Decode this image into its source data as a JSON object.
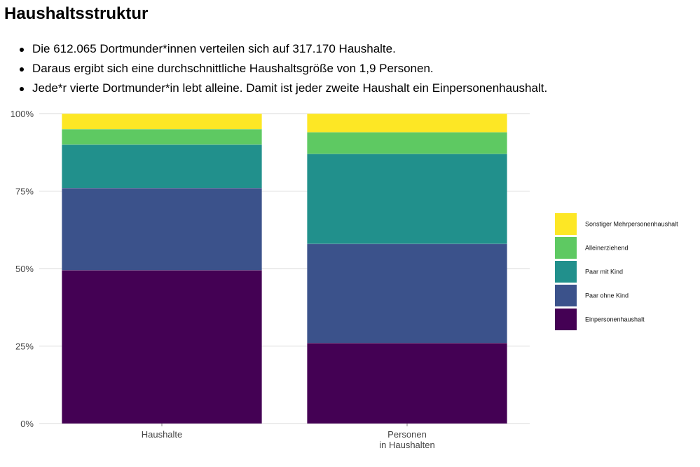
{
  "page": {
    "title": "Haushaltsstruktur",
    "bullets": [
      "Die 612.065 Dortmunder*innen verteilen sich auf 317.170 Haushalte.",
      "Daraus ergibt sich eine durchschnittliche Haushaltsgröße von 1,9 Personen.",
      "Jede*r vierte Dortmunder*in lebt alleine. Damit ist jeder zweite Haushalt ein Einpersonenhaushalt."
    ]
  },
  "chart_data": {
    "type": "bar",
    "stacked": true,
    "orientation": "vertical",
    "categories": [
      [
        "Haushalte"
      ],
      [
        "Personen",
        "in Haushalten"
      ]
    ],
    "ylim": [
      0,
      100
    ],
    "yticks": [
      "0%",
      "25%",
      "50%",
      "75%",
      "100%"
    ],
    "grid": true,
    "legend_position": "right",
    "series": [
      {
        "name": "Einpersonenhaushalt",
        "color": "#440154",
        "values": [
          49.5,
          26
        ]
      },
      {
        "name": "Paar ohne Kind",
        "color": "#3b528b",
        "values": [
          26.5,
          32
        ]
      },
      {
        "name": "Paar mit Kind",
        "color": "#21908c",
        "values": [
          14,
          29
        ]
      },
      {
        "name": "Alleinerziehend",
        "color": "#5ec962",
        "values": [
          5,
          7
        ]
      },
      {
        "name": "Sonstiger Mehrpersonenhaushalt",
        "color": "#fde725",
        "values": [
          5,
          6
        ]
      }
    ]
  }
}
